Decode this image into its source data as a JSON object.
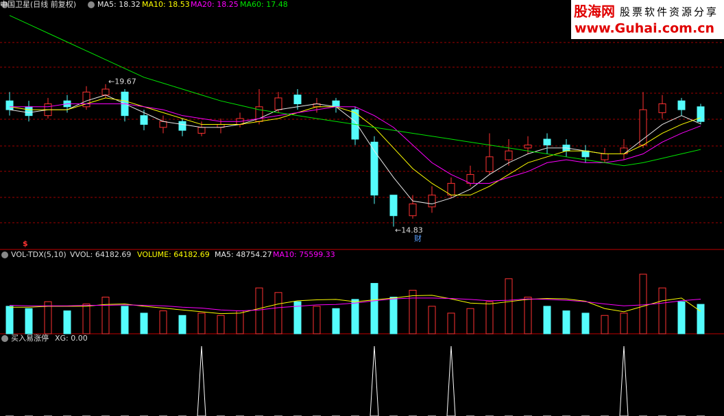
{
  "header": {
    "title": "中国卫星(日线 前复权)",
    "ma5": "MA5: 18.32",
    "ma10": "MA10: 18.53",
    "ma20": "MA20: 18.25",
    "ma60": "MA60: 17.48"
  },
  "watermark": {
    "brand": "股海网",
    "slogan": "股票软件资源分享",
    "url": "www.Guhai.com.cn"
  },
  "chart_data": [
    {
      "type": "candlestick",
      "open": [
        19.1,
        18.9,
        18.6,
        19.1,
        18.9,
        19.3,
        19.4,
        18.6,
        18.2,
        18.4,
        18.0,
        18.2,
        18.3,
        18.4,
        18.8,
        19.3,
        18.9,
        19.1,
        18.8,
        17.7,
        15.9,
        15.2,
        15.5,
        15.9,
        16.3,
        16.7,
        17.1,
        17.5,
        17.8,
        17.6,
        17.4,
        17.1,
        17.3,
        17.6,
        18.7,
        19.1,
        18.9
      ],
      "high": [
        19.4,
        19.1,
        19.2,
        19.3,
        19.6,
        19.67,
        19.5,
        18.8,
        18.6,
        18.5,
        18.4,
        18.5,
        18.7,
        19.5,
        19.4,
        19.5,
        19.2,
        19.2,
        18.9,
        17.9,
        15.9,
        15.9,
        16.2,
        16.5,
        16.9,
        18.0,
        17.8,
        17.9,
        18.0,
        17.8,
        17.6,
        17.5,
        17.8,
        19.4,
        19.3,
        19.2,
        19.0
      ],
      "low": [
        18.6,
        18.4,
        18.5,
        18.7,
        18.8,
        19.2,
        18.4,
        18.1,
        18.0,
        17.9,
        17.9,
        18.0,
        18.2,
        18.3,
        18.7,
        18.8,
        18.7,
        18.7,
        17.6,
        15.6,
        14.83,
        15.1,
        15.3,
        15.8,
        16.2,
        16.6,
        16.9,
        17.3,
        17.3,
        17.2,
        17.0,
        17.0,
        17.1,
        17.5,
        18.5,
        18.6,
        18.3
      ],
      "close": [
        18.8,
        18.6,
        19.0,
        18.9,
        19.4,
        19.5,
        18.6,
        18.3,
        18.4,
        18.1,
        18.2,
        18.3,
        18.5,
        18.9,
        19.2,
        19.0,
        19.0,
        18.9,
        17.8,
        15.9,
        15.2,
        15.6,
        15.9,
        16.3,
        16.6,
        17.2,
        17.4,
        17.6,
        17.6,
        17.4,
        17.2,
        17.3,
        17.5,
        18.8,
        19.0,
        18.8,
        18.4
      ],
      "up_color": "#ff3232",
      "down_color": "#54fcfc",
      "series": [
        {
          "color": "#e8e8e8",
          "values": [
            18.8,
            18.7,
            18.8,
            18.8,
            19.1,
            19.3,
            19.0,
            18.7,
            18.4,
            18.3,
            18.2,
            18.2,
            18.3,
            18.5,
            18.8,
            18.9,
            19.0,
            18.9,
            18.4,
            17.4,
            16.5,
            15.7,
            15.6,
            15.8,
            16.1,
            16.6,
            17.0,
            17.3,
            17.5,
            17.5,
            17.4,
            17.3,
            17.3,
            17.8,
            18.3,
            18.6,
            18.32
          ]
        },
        {
          "color": "#ffff00",
          "values": [
            18.9,
            18.8,
            18.8,
            18.8,
            19.0,
            19.2,
            19.1,
            18.9,
            18.7,
            18.5,
            18.3,
            18.3,
            18.3,
            18.4,
            18.5,
            18.7,
            18.9,
            18.9,
            18.7,
            18.2,
            17.5,
            16.8,
            16.3,
            15.9,
            15.9,
            16.2,
            16.6,
            17.0,
            17.2,
            17.4,
            17.4,
            17.3,
            17.3,
            17.6,
            18.0,
            18.3,
            18.53
          ]
        },
        {
          "color": "#ff00ff",
          "values": [
            18.9,
            18.9,
            18.9,
            19.0,
            19.0,
            19.0,
            19.0,
            18.9,
            18.8,
            18.6,
            18.5,
            18.4,
            18.4,
            18.5,
            18.6,
            18.7,
            18.8,
            18.9,
            18.9,
            18.6,
            18.2,
            17.6,
            17.0,
            16.6,
            16.3,
            16.3,
            16.5,
            16.7,
            17.0,
            17.1,
            17.0,
            17.0,
            17.1,
            17.3,
            17.7,
            18.0,
            18.25
          ]
        },
        {
          "color": "#00e600",
          "values": [
            22.0,
            21.7,
            21.4,
            21.1,
            20.8,
            20.5,
            20.2,
            19.9,
            19.7,
            19.5,
            19.3,
            19.1,
            18.95,
            18.8,
            18.7,
            18.6,
            18.5,
            18.4,
            18.3,
            18.2,
            18.1,
            18.0,
            17.9,
            17.8,
            17.7,
            17.6,
            17.5,
            17.4,
            17.3,
            17.2,
            17.1,
            17.0,
            16.9,
            17.0,
            17.15,
            17.3,
            17.45
          ]
        }
      ],
      "ylim": [
        14.1,
        22.2
      ],
      "annotations": {
        "high_label": "←19.67",
        "low_label": "←14.83",
        "marker": "财",
        "dollar": "$"
      }
    },
    {
      "type": "volume",
      "header": {
        "name": "VOL-TDX(5,10)",
        "vvol": "VVOL: 64182.69",
        "volume": "VOLUME: 64182.69",
        "ma5": "MA5: 48754.27",
        "ma10": "MA10: 75599.33"
      },
      "values": [
        60000,
        55000,
        70000,
        50000,
        65000,
        80000,
        60000,
        45000,
        50000,
        40000,
        45000,
        40000,
        50000,
        100000,
        90000,
        70000,
        60000,
        55000,
        75000,
        110000,
        80000,
        95000,
        60000,
        45000,
        55000,
        70000,
        120000,
        80000,
        60000,
        50000,
        45000,
        40000,
        45000,
        130000,
        100000,
        70000,
        64182.69
      ],
      "series": [
        {
          "color": "#ffff00",
          "values": [
            58000,
            58000,
            60000,
            60000,
            60000,
            64000,
            65000,
            60000,
            56000,
            52000,
            48000,
            44000,
            45000,
            55000,
            65000,
            72000,
            74000,
            75000,
            70000,
            74000,
            78000,
            83000,
            84000,
            76000,
            67000,
            65000,
            70000,
            75000,
            77000,
            76000,
            71000,
            55000,
            48000,
            60000,
            72000,
            78000,
            48754.27
          ]
        },
        {
          "color": "#ff00ff",
          "values": [
            62000,
            61000,
            61000,
            61000,
            62000,
            62000,
            63000,
            62000,
            61000,
            58000,
            56000,
            52000,
            50000,
            52000,
            57000,
            60000,
            63000,
            64000,
            67000,
            72000,
            76000,
            78000,
            78000,
            77000,
            75000,
            72000,
            73000,
            76000,
            75000,
            73000,
            70000,
            65000,
            61000,
            63000,
            67000,
            72000,
            75599.33
          ]
        }
      ],
      "ylim": [
        0,
        160000
      ]
    },
    {
      "type": "spike",
      "header": {
        "name": "买入易涨停",
        "xg": "XG: 0.00"
      },
      "color": "#ffffff",
      "values": [
        0,
        0,
        0,
        0,
        0,
        0,
        0,
        0,
        0,
        0,
        1,
        0,
        0,
        0,
        0,
        0,
        0,
        0,
        0,
        1,
        0,
        0,
        0,
        1,
        0,
        0,
        0,
        0,
        0,
        0,
        0,
        0,
        1,
        0,
        0,
        0,
        0
      ],
      "ylim": [
        0,
        1
      ]
    }
  ]
}
